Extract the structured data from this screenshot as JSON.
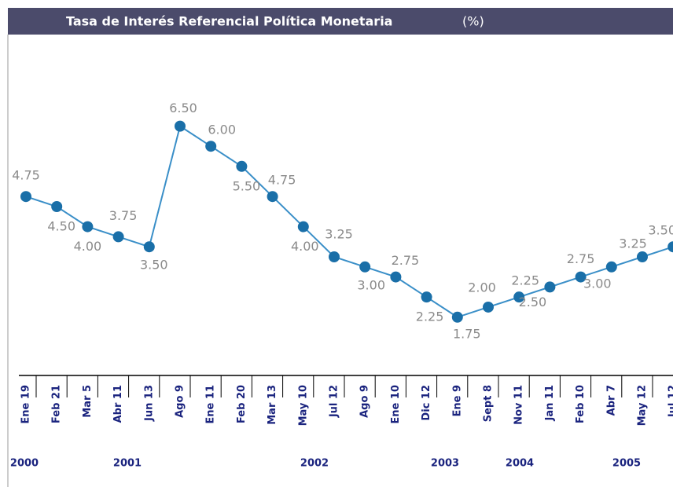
{
  "chart_data": {
    "type": "line",
    "title": "Tasa de Interés Referencial Política Monetaria",
    "title_unit": "(%)",
    "categories": [
      "Ene 19",
      "Feb 21",
      "Mar 5",
      "Abr 11",
      "Jun 13",
      "Ago 9",
      "Ene 11",
      "Feb 20",
      "Mar 13",
      "May 10",
      "Jul 12",
      "Ago 9",
      "Ene 10",
      "Dic 12",
      "Ene 9",
      "Sept 8",
      "Nov 11",
      "Jan 11",
      "Feb 10",
      "Abr 7",
      "May 12",
      "Jul 12"
    ],
    "values": [
      4.75,
      4.5,
      4.0,
      3.75,
      3.5,
      6.5,
      6.0,
      5.5,
      4.75,
      4.0,
      3.25,
      3.0,
      2.75,
      2.25,
      1.75,
      2.0,
      2.25,
      2.5,
      2.75,
      3.0,
      3.25,
      3.5
    ],
    "value_labels": [
      "4.75",
      "4.50",
      "4.00",
      "3.75",
      "3.50",
      "6.50",
      "6.00",
      "5.50",
      "4.75",
      "4.00",
      "3.25",
      "3.00",
      "2.75",
      "2.25",
      "1.75",
      "2.00",
      "2.25",
      "2.50",
      "2.75",
      "3.00",
      "3.25",
      "3.50"
    ],
    "years": [
      "2000",
      "2001",
      "2002",
      "2003",
      "2004",
      "2005"
    ],
    "color": "#3a8fc8",
    "marker_color": "#1a6fa8",
    "ylim": [
      0.3,
      8.7
    ],
    "grid": false
  }
}
